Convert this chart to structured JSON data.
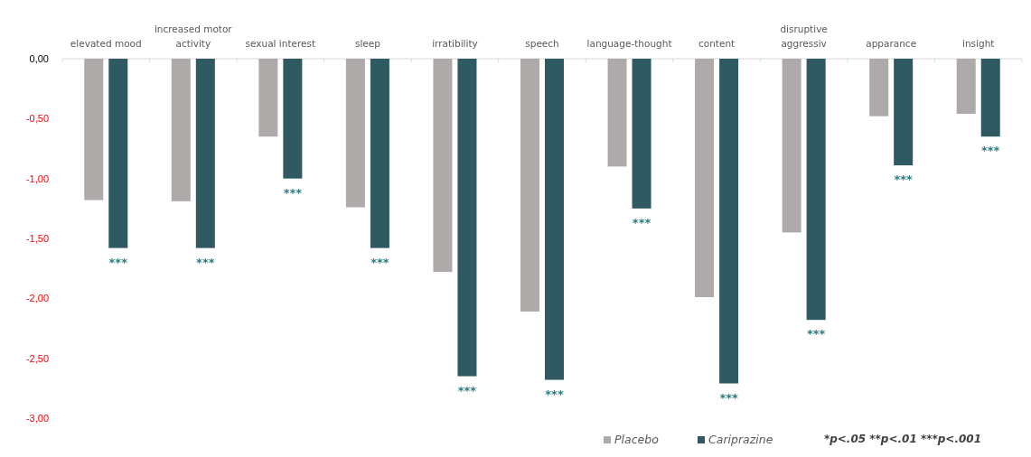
{
  "chart_data": {
    "type": "bar",
    "categories": [
      "elevated mood",
      "increased motor activity",
      "sexual interest",
      "sleep",
      "irratibility",
      "speech",
      "language-thought",
      "content",
      "disruptive aggressiv",
      "apparance",
      "insight"
    ],
    "series": [
      {
        "name": "Placebo",
        "color": "#aeaaaa",
        "values": [
          -1.18,
          -1.19,
          -0.65,
          -1.24,
          -1.78,
          -2.11,
          -0.9,
          -1.99,
          -1.45,
          -0.48,
          -0.46
        ]
      },
      {
        "name": "Cariprazine",
        "color": "#2f5a62",
        "values": [
          -1.58,
          -1.58,
          -1.0,
          -1.58,
          -2.65,
          -2.68,
          -1.25,
          -2.71,
          -2.18,
          -0.89,
          -0.65
        ]
      }
    ],
    "ylim": [
      -3,
      0
    ],
    "yticks": [
      {
        "value": 0,
        "label": "0,00"
      },
      {
        "value": -0.5,
        "label": "-0,50"
      },
      {
        "value": -1,
        "label": "-1,00"
      },
      {
        "value": -1.5,
        "label": "-1,50"
      },
      {
        "value": -2,
        "label": "-2,00"
      },
      {
        "value": -2.5,
        "label": "-2,50"
      },
      {
        "value": -3,
        "label": "-3,00"
      }
    ],
    "grid": false,
    "legend": "bottom right",
    "annotations": [
      {
        "text": "***",
        "x": "elevated mood",
        "y": -1.58
      },
      {
        "text": "***",
        "x": "increased motor activity",
        "y": -1.58
      },
      {
        "text": "***",
        "x": "sexual interest",
        "y": -1.0
      },
      {
        "text": "***",
        "x": "sleep",
        "y": -1.58
      },
      {
        "text": "***",
        "x": "irratibility",
        "y": -2.65
      },
      {
        "text": "***",
        "x": "speech",
        "y": -2.68
      },
      {
        "text": "***",
        "x": "language-thought",
        "y": -1.25
      },
      {
        "text": "***",
        "x": "content",
        "y": -2.71
      },
      {
        "text": "***",
        "x": "disruptive aggressiv",
        "y": -2.18
      },
      {
        "text": "***",
        "x": "apparance",
        "y": -0.89
      },
      {
        "text": "***",
        "x": "insight",
        "y": -0.65
      },
      "*p<.05 **p<.01 ***p<.001"
    ]
  }
}
